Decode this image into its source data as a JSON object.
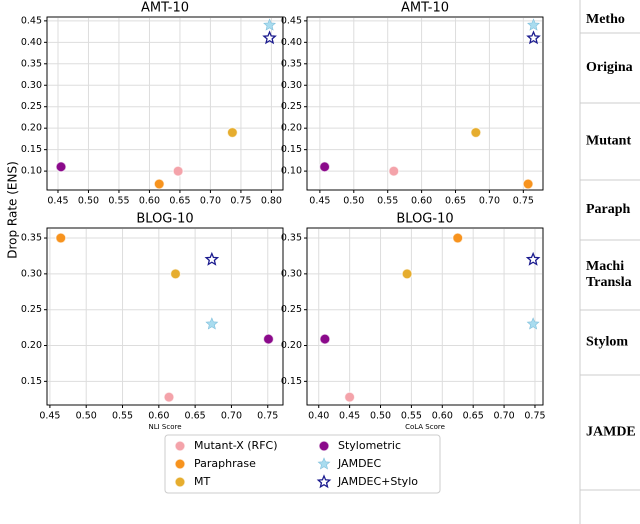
{
  "ylabel": "Drop Rate (ENS)",
  "chart_data": [
    {
      "type": "scatter",
      "title": "AMT-10",
      "xlim": [
        0.432,
        0.819
      ],
      "ylim": [
        0.056,
        0.459
      ],
      "xticks": [
        0.45,
        {
          "value": 0.5,
          "label": "0.50"
        },
        0.55,
        {
          "value": 0.6,
          "label": "0.60"
        },
        0.65,
        {
          "value": 0.7,
          "label": "0.70"
        },
        0.75,
        {
          "value": 0.8,
          "label": "0.80"
        }
      ],
      "yticks": [
        {
          "value": 0.1,
          "label": "0.10"
        },
        0.15,
        {
          "value": 0.2,
          "label": "0.20"
        },
        0.25,
        {
          "value": 0.3,
          "label": "0.30"
        },
        0.35,
        {
          "value": 0.4,
          "label": "0.40"
        },
        0.45
      ],
      "grid": true,
      "series": [
        {
          "name": "Mutant-X (RFC)",
          "color": "#f4a3aa",
          "marker": "circle",
          "x": [
            0.647
          ],
          "values": [
            0.1
          ]
        },
        {
          "name": "Paraphrase",
          "color": "#f7931e",
          "marker": "circle",
          "x": [
            0.616
          ],
          "values": [
            0.07
          ]
        },
        {
          "name": "MT",
          "color": "#e6ad2e",
          "marker": "circle",
          "x": [
            0.736
          ],
          "values": [
            0.19
          ]
        },
        {
          "name": "Stylometric",
          "color": "#8b0a8b",
          "marker": "circle",
          "x": [
            0.455
          ],
          "values": [
            0.11
          ]
        },
        {
          "name": "JAMDEC",
          "color": "#a9dcef",
          "marker": "star",
          "x": [
            0.797
          ],
          "values": [
            0.44
          ]
        },
        {
          "name": "JAMDEC+Stylo",
          "color": "#1c1c8f",
          "marker": "star",
          "x": [
            0.797
          ],
          "values": [
            0.41
          ]
        }
      ]
    },
    {
      "type": "scatter",
      "title": "AMT-10",
      "xlim": [
        0.431,
        0.779
      ],
      "ylim": [
        0.056,
        0.459
      ],
      "xticks": [
        0.45,
        {
          "value": 0.5,
          "label": "0.50"
        },
        0.55,
        {
          "value": 0.6,
          "label": "0.60"
        },
        0.65,
        {
          "value": 0.7,
          "label": "0.70"
        },
        0.75
      ],
      "yticks": [
        {
          "value": 0.1,
          "label": "0.10"
        },
        0.15,
        {
          "value": 0.2,
          "label": "0.20"
        },
        0.25,
        {
          "value": 0.3,
          "label": "0.30"
        },
        0.35,
        {
          "value": 0.4,
          "label": "0.40"
        },
        0.45
      ],
      "grid": true,
      "series": [
        {
          "x": [
            0.559
          ],
          "values": [
            0.1
          ]
        },
        {
          "x": [
            0.757
          ],
          "values": [
            0.07
          ]
        },
        {
          "x": [
            0.68
          ],
          "values": [
            0.19
          ]
        },
        {
          "x": [
            0.457
          ],
          "values": [
            0.11
          ]
        },
        {
          "x": [
            0.765
          ],
          "values": [
            0.44
          ]
        },
        {
          "x": [
            0.765
          ],
          "values": [
            0.41
          ]
        }
      ]
    },
    {
      "type": "scatter",
      "title": "BLOG-10",
      "xlabel": "NLI Score",
      "xlim": [
        0.446,
        0.771
      ],
      "ylim": [
        0.117,
        0.364
      ],
      "xticks": [
        0.45,
        {
          "value": 0.5,
          "label": "0.50"
        },
        0.55,
        {
          "value": 0.6,
          "label": "0.60"
        },
        0.65,
        {
          "value": 0.7,
          "label": "0.70"
        },
        0.75
      ],
      "yticks": [
        0.15,
        {
          "value": 0.2,
          "label": "0.20"
        },
        0.25,
        {
          "value": 0.3,
          "label": "0.30"
        },
        0.35
      ],
      "grid": true,
      "series": [
        {
          "x": [
            0.614
          ],
          "values": [
            0.128
          ]
        },
        {
          "x": [
            0.465
          ],
          "values": [
            0.35
          ]
        },
        {
          "x": [
            0.623
          ],
          "values": [
            0.3
          ]
        },
        {
          "x": [
            0.751
          ],
          "values": [
            0.209
          ]
        },
        {
          "x": [
            0.673
          ],
          "values": [
            0.23
          ]
        },
        {
          "x": [
            0.673
          ],
          "values": [
            0.32
          ]
        }
      ]
    },
    {
      "type": "scatter",
      "title": "BLOG-10",
      "xlabel": "CoLA Score",
      "xlim": [
        0.381,
        0.763
      ],
      "ylim": [
        0.117,
        0.364
      ],
      "xticks": [
        {
          "value": 0.4,
          "label": "0.40"
        },
        0.45,
        {
          "value": 0.5,
          "label": "0.50"
        },
        0.55,
        {
          "value": 0.6,
          "label": "0.60"
        },
        0.65,
        {
          "value": 0.7,
          "label": "0.70"
        },
        0.75
      ],
      "yticks": [
        0.15,
        {
          "value": 0.2,
          "label": "0.20"
        },
        0.25,
        {
          "value": 0.3,
          "label": "0.30"
        },
        0.35
      ],
      "grid": true,
      "series": [
        {
          "x": [
            0.45
          ],
          "values": [
            0.128
          ]
        },
        {
          "x": [
            0.625
          ],
          "values": [
            0.35
          ]
        },
        {
          "x": [
            0.543
          ],
          "values": [
            0.3
          ]
        },
        {
          "x": [
            0.41
          ],
          "values": [
            0.209
          ]
        },
        {
          "x": [
            0.747
          ],
          "values": [
            0.23
          ]
        },
        {
          "x": [
            0.747
          ],
          "values": [
            0.32
          ]
        }
      ]
    }
  ],
  "table": {
    "header": "Metho",
    "rows": [
      [
        "Origina"
      ],
      [
        "Mutant"
      ],
      [
        "Paraph"
      ],
      [
        "Machi",
        "Transla"
      ],
      [
        "Stylom"
      ],
      [
        "JAMDE"
      ]
    ]
  }
}
